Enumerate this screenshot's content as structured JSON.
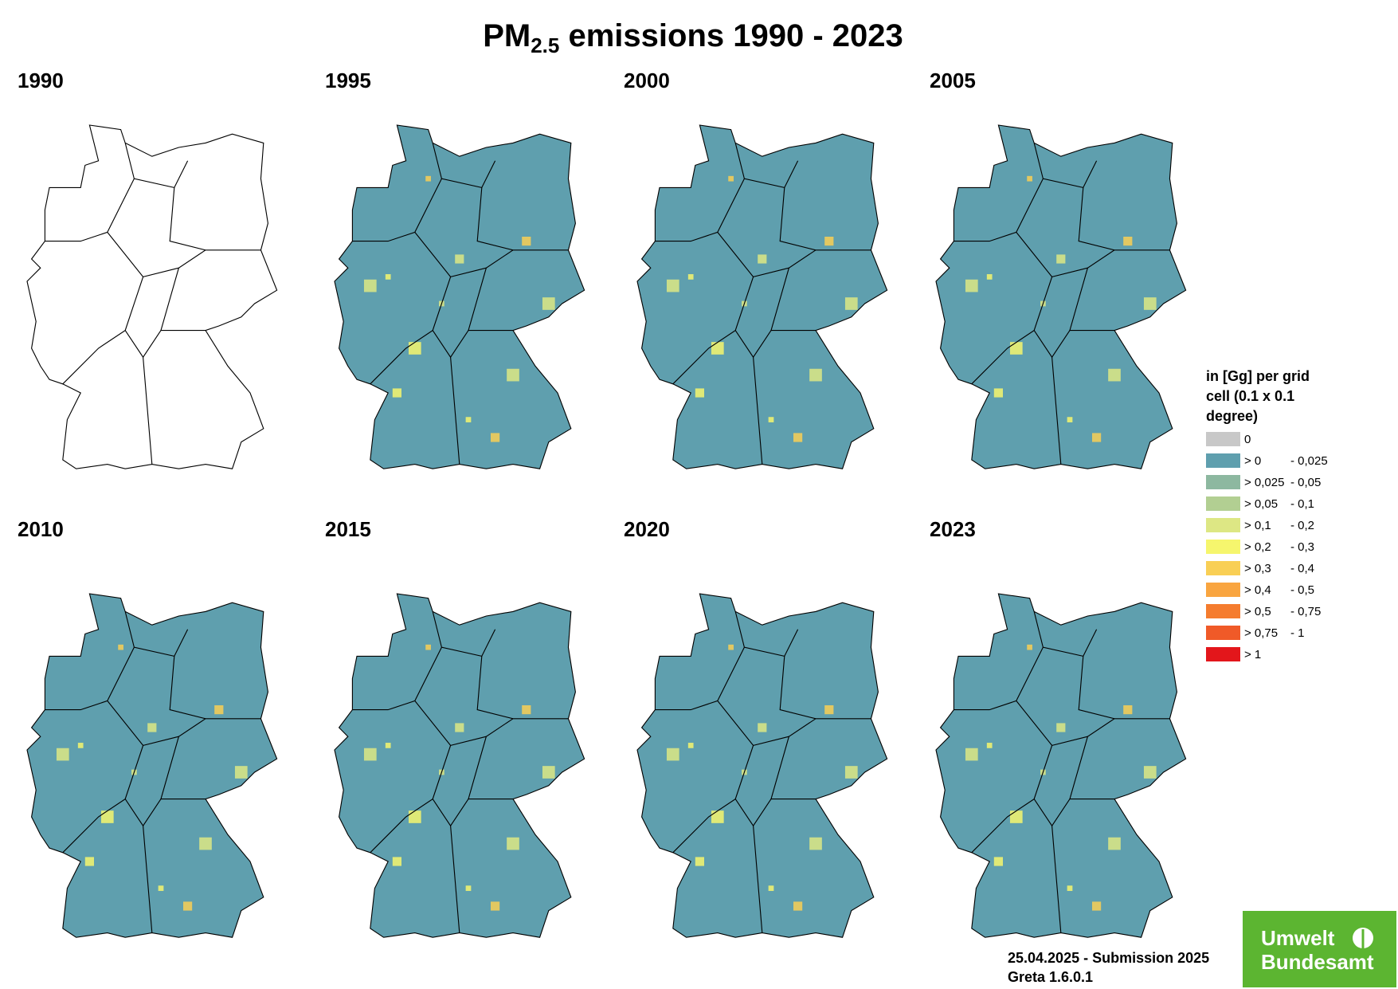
{
  "title": {
    "main": "PM",
    "sub": "2.5",
    "rest": " emissions 1990 - 2023"
  },
  "years": [
    "1990",
    "1995",
    "2000",
    "2005",
    "2010",
    "2015",
    "2020",
    "2023"
  ],
  "legend": {
    "title": [
      "in [Gg] per grid",
      "cell (0.1 x 0.1",
      "degree)"
    ],
    "items": [
      {
        "color": "#c8c8c8",
        "from": "0",
        "to": ""
      },
      {
        "color": "#5f9fae",
        "from": "> 0",
        "to": "- 0,025"
      },
      {
        "color": "#8db8a0",
        "from": "> 0,025",
        "to": "- 0,05"
      },
      {
        "color": "#b2cf92",
        "from": "> 0,05",
        "to": "- 0,1"
      },
      {
        "color": "#dde784",
        "from": "> 0,1",
        "to": "- 0,2"
      },
      {
        "color": "#f6f66d",
        "from": "> 0,2",
        "to": "- 0,3"
      },
      {
        "color": "#f9cf55",
        "from": "> 0,3",
        "to": "- 0,4"
      },
      {
        "color": "#f9a540",
        "from": "> 0,4",
        "to": "- 0,5"
      },
      {
        "color": "#f57c2e",
        "from": "> 0,5",
        "to": "- 0,75"
      },
      {
        "color": "#f05a28",
        "from": "> 0,75",
        "to": "- 1"
      },
      {
        "color": "#e3161b",
        "from": "> 1",
        "to": ""
      }
    ]
  },
  "footer": [
    "25.04.2025 - Submission 2025",
    "Greta 1.6.0.1"
  ],
  "logo": [
    "Umwelt",
    "Bundesamt"
  ]
}
